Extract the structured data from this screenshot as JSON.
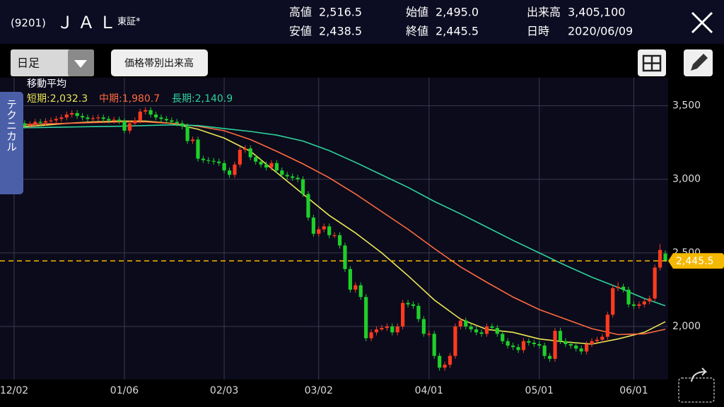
{
  "header": {
    "code": "(9201)",
    "name": "ＪＡＬ",
    "market": "東証*",
    "stats": [
      {
        "label": "高値",
        "value": "2,516.5"
      },
      {
        "label": "安値",
        "value": "2,438.5"
      },
      {
        "label": "始値",
        "value": "2,495.0"
      },
      {
        "label": "終値",
        "value": "2,445.5"
      },
      {
        "label": "出来高",
        "value": "3,405,100"
      },
      {
        "label": "日時",
        "value": "2020/06/09"
      }
    ]
  },
  "toolbar": {
    "period": "日足",
    "volume_button": "価格帯別出来高",
    "tab": "テクニカル"
  },
  "chart_data": {
    "type": "candlestick",
    "indicator_title": "移動平均",
    "categories": [
      "12/02",
      null,
      null,
      null,
      null,
      null,
      null,
      null,
      null,
      null,
      null,
      null,
      null,
      null,
      null,
      null,
      null,
      null,
      null,
      null,
      null,
      "01/06",
      null,
      null,
      null,
      null,
      null,
      null,
      null,
      null,
      null,
      null,
      null,
      null,
      null,
      null,
      null,
      null,
      null,
      null,
      "02/03",
      null,
      null,
      null,
      null,
      null,
      null,
      null,
      null,
      null,
      null,
      null,
      null,
      null,
      null,
      null,
      null,
      null,
      "03/02",
      null,
      null,
      null,
      null,
      null,
      null,
      null,
      null,
      null,
      null,
      null,
      null,
      null,
      null,
      null,
      null,
      null,
      null,
      null,
      null,
      "04/01",
      null,
      null,
      null,
      null,
      null,
      null,
      null,
      null,
      null,
      null,
      null,
      null,
      null,
      null,
      null,
      null,
      null,
      null,
      null,
      null,
      "05/01",
      null,
      null,
      null,
      null,
      null,
      null,
      null,
      null,
      null,
      null,
      null,
      null,
      null,
      null,
      null,
      null,
      null,
      "06/01",
      null,
      null,
      null,
      null,
      null,
      null
    ],
    "ohlc": [
      [
        3360,
        3390,
        3340,
        3370
      ],
      [
        3370,
        3400,
        3350,
        3380
      ],
      [
        3380,
        3400,
        3345,
        3365
      ],
      [
        3365,
        3395,
        3345,
        3375
      ],
      [
        3375,
        3410,
        3355,
        3390
      ],
      [
        3390,
        3410,
        3365,
        3385
      ],
      [
        3385,
        3415,
        3365,
        3395
      ],
      [
        3395,
        3420,
        3375,
        3400
      ],
      [
        3400,
        3430,
        3380,
        3410
      ],
      [
        3410,
        3440,
        3390,
        3420
      ],
      [
        3420,
        3460,
        3400,
        3440
      ],
      [
        3440,
        3470,
        3420,
        3450
      ],
      [
        3450,
        3470,
        3410,
        3430
      ],
      [
        3430,
        3450,
        3400,
        3420
      ],
      [
        3420,
        3440,
        3390,
        3410
      ],
      [
        3410,
        3435,
        3390,
        3415
      ],
      [
        3415,
        3440,
        3395,
        3420
      ],
      [
        3420,
        3440,
        3390,
        3410
      ],
      [
        3410,
        3430,
        3380,
        3400
      ],
      [
        3400,
        3425,
        3380,
        3405
      ],
      [
        3405,
        3425,
        3375,
        3395
      ],
      [
        3395,
        3415,
        3310,
        3330
      ],
      [
        3330,
        3400,
        3310,
        3380
      ],
      [
        3380,
        3420,
        3360,
        3400
      ],
      [
        3400,
        3480,
        3380,
        3460
      ],
      [
        3460,
        3490,
        3440,
        3470
      ],
      [
        3470,
        3490,
        3420,
        3440
      ],
      [
        3440,
        3460,
        3400,
        3420
      ],
      [
        3420,
        3440,
        3390,
        3410
      ],
      [
        3410,
        3430,
        3380,
        3400
      ],
      [
        3400,
        3420,
        3370,
        3390
      ],
      [
        3390,
        3410,
        3360,
        3380
      ],
      [
        3380,
        3400,
        3340,
        3360
      ],
      [
        3360,
        3380,
        3240,
        3260
      ],
      [
        3260,
        3290,
        3240,
        3270
      ],
      [
        3270,
        3290,
        3120,
        3140
      ],
      [
        3140,
        3160,
        3110,
        3130
      ],
      [
        3130,
        3150,
        3105,
        3125
      ],
      [
        3125,
        3145,
        3100,
        3120
      ],
      [
        3120,
        3140,
        3090,
        3110
      ],
      [
        3110,
        3130,
        3040,
        3060
      ],
      [
        3060,
        3080,
        3010,
        3030
      ],
      [
        3030,
        3120,
        3010,
        3100
      ],
      [
        3100,
        3220,
        3080,
        3200
      ],
      [
        3200,
        3230,
        3180,
        3210
      ],
      [
        3210,
        3230,
        3130,
        3150
      ],
      [
        3150,
        3170,
        3100,
        3120
      ],
      [
        3120,
        3140,
        3080,
        3100
      ],
      [
        3100,
        3120,
        3060,
        3080
      ],
      [
        3080,
        3130,
        3060,
        3110
      ],
      [
        3110,
        3130,
        3040,
        3060
      ],
      [
        3060,
        3080,
        3010,
        3030
      ],
      [
        3030,
        3050,
        3000,
        3020
      ],
      [
        3020,
        3040,
        2990,
        3010
      ],
      [
        3010,
        3030,
        2980,
        3000
      ],
      [
        3000,
        3020,
        2880,
        2900
      ],
      [
        2900,
        2920,
        2720,
        2740
      ],
      [
        2740,
        2760,
        2610,
        2630
      ],
      [
        2630,
        2680,
        2610,
        2660
      ],
      [
        2660,
        2700,
        2640,
        2680
      ],
      [
        2680,
        2700,
        2600,
        2620
      ],
      [
        2620,
        2640,
        2600,
        2620
      ],
      [
        2620,
        2640,
        2530,
        2550
      ],
      [
        2550,
        2570,
        2370,
        2390
      ],
      [
        2390,
        2410,
        2230,
        2250
      ],
      [
        2250,
        2300,
        2230,
        2280
      ],
      [
        2280,
        2300,
        2180,
        2200
      ],
      [
        2200,
        2220,
        1900,
        1920
      ],
      [
        1920,
        1980,
        1900,
        1960
      ],
      [
        1960,
        2000,
        1940,
        1980
      ],
      [
        1980,
        2010,
        1970,
        1990
      ],
      [
        1990,
        2020,
        1970,
        2000
      ],
      [
        2000,
        2020,
        1940,
        1960
      ],
      [
        1960,
        2020,
        1940,
        2000
      ],
      [
        2000,
        2180,
        1980,
        2160
      ],
      [
        2160,
        2180,
        2130,
        2150
      ],
      [
        2150,
        2170,
        2120,
        2140
      ],
      [
        2140,
        2160,
        2030,
        2050
      ],
      [
        2050,
        2070,
        1930,
        1950
      ],
      [
        1950,
        1970,
        1930,
        1950
      ],
      [
        1950,
        1970,
        1780,
        1800
      ],
      [
        1800,
        1820,
        1700,
        1720
      ],
      [
        1720,
        1760,
        1700,
        1740
      ],
      [
        1740,
        1820,
        1720,
        1800
      ],
      [
        1800,
        2020,
        1780,
        2000
      ],
      [
        2000,
        2060,
        1980,
        2040
      ],
      [
        2040,
        2060,
        1980,
        2000
      ],
      [
        2000,
        2020,
        1960,
        1980
      ],
      [
        1980,
        2000,
        1940,
        1960
      ],
      [
        1960,
        1980,
        1930,
        1950
      ],
      [
        1950,
        2020,
        1930,
        2000
      ],
      [
        2000,
        2020,
        1970,
        1990
      ],
      [
        1990,
        2010,
        1930,
        1950
      ],
      [
        1950,
        1970,
        1880,
        1900
      ],
      [
        1900,
        1920,
        1850,
        1870
      ],
      [
        1870,
        1890,
        1840,
        1860
      ],
      [
        1860,
        1880,
        1820,
        1840
      ],
      [
        1840,
        1920,
        1820,
        1900
      ],
      [
        1900,
        1920,
        1870,
        1890
      ],
      [
        1890,
        1910,
        1860,
        1880
      ],
      [
        1880,
        1900,
        1850,
        1870
      ],
      [
        1870,
        1890,
        1780,
        1800
      ],
      [
        1800,
        1820,
        1760,
        1780
      ],
      [
        1780,
        1990,
        1760,
        1970
      ],
      [
        1970,
        1990,
        1880,
        1900
      ],
      [
        1900,
        1920,
        1860,
        1880
      ],
      [
        1880,
        1900,
        1850,
        1870
      ],
      [
        1870,
        1890,
        1830,
        1850
      ],
      [
        1850,
        1870,
        1810,
        1830
      ],
      [
        1830,
        1900,
        1810,
        1880
      ],
      [
        1880,
        1920,
        1860,
        1900
      ],
      [
        1900,
        1930,
        1890,
        1910
      ],
      [
        1910,
        1950,
        1890,
        1930
      ],
      [
        1930,
        2100,
        1910,
        2080
      ],
      [
        2080,
        2280,
        2060,
        2260
      ],
      [
        2260,
        2300,
        2240,
        2270
      ],
      [
        2270,
        2290,
        2230,
        2250
      ],
      [
        2250,
        2270,
        2130,
        2150
      ],
      [
        2150,
        2170,
        2120,
        2140
      ],
      [
        2140,
        2170,
        2120,
        2150
      ],
      [
        2150,
        2190,
        2130,
        2170
      ],
      [
        2170,
        2210,
        2150,
        2190
      ],
      [
        2190,
        2420,
        2170,
        2400
      ],
      [
        2400,
        2560,
        2380,
        2520
      ],
      [
        2495,
        2516.5,
        2438.5,
        2445.5
      ]
    ],
    "up_color": "#ff3b1f",
    "down_color": "#1fcf2a",
    "series": [
      {
        "name": "短期:2,032.3",
        "color": "#ece653",
        "x": [
          0,
          5,
          10,
          15,
          20,
          25,
          30,
          35,
          40,
          45,
          50,
          55,
          60,
          65,
          70,
          75,
          80,
          85,
          90,
          95,
          100,
          105,
          110,
          115,
          120,
          124
        ],
        "values": [
          3355,
          3365,
          3380,
          3390,
          3395,
          3395,
          3380,
          3340,
          3280,
          3190,
          3045,
          2900,
          2755,
          2635,
          2500,
          2345,
          2180,
          2050,
          1980,
          1960,
          1915,
          1895,
          1880,
          1915,
          1960,
          2032.3
        ]
      },
      {
        "name": "中期:1,980.7",
        "color": "#ff6a3d",
        "x": [
          0,
          5,
          10,
          15,
          20,
          25,
          30,
          35,
          40,
          45,
          50,
          55,
          60,
          65,
          70,
          75,
          80,
          85,
          90,
          95,
          100,
          105,
          110,
          115,
          120,
          124
        ],
        "values": [
          3370,
          3375,
          3380,
          3385,
          3390,
          3390,
          3380,
          3360,
          3330,
          3270,
          3190,
          3105,
          3010,
          2900,
          2780,
          2660,
          2530,
          2405,
          2300,
          2200,
          2115,
          2050,
          1985,
          1945,
          1950,
          1980.7
        ]
      },
      {
        "name": "長期:2,140.9",
        "color": "#2ed39a",
        "x": [
          0,
          5,
          10,
          15,
          20,
          25,
          30,
          35,
          40,
          45,
          50,
          55,
          60,
          65,
          70,
          75,
          80,
          85,
          90,
          95,
          100,
          105,
          110,
          115,
          120,
          124
        ],
        "values": [
          3350,
          3352,
          3355,
          3358,
          3360,
          3365,
          3370,
          3365,
          3345,
          3325,
          3300,
          3260,
          3195,
          3115,
          3030,
          2945,
          2850,
          2765,
          2675,
          2585,
          2500,
          2415,
          2335,
          2265,
          2190,
          2140.9
        ]
      }
    ],
    "ylim": [
      1640,
      3690
    ],
    "yticks": [
      {
        "value": 2000,
        "label": "2,000"
      },
      {
        "value": 2500,
        "label": "2,500"
      },
      {
        "value": 3000,
        "label": "3,000"
      },
      {
        "value": 3500,
        "label": "3,500"
      }
    ],
    "grid": true,
    "last_price": {
      "value": 2445.5,
      "label": "2,445.5",
      "color": "#f5b800"
    }
  }
}
